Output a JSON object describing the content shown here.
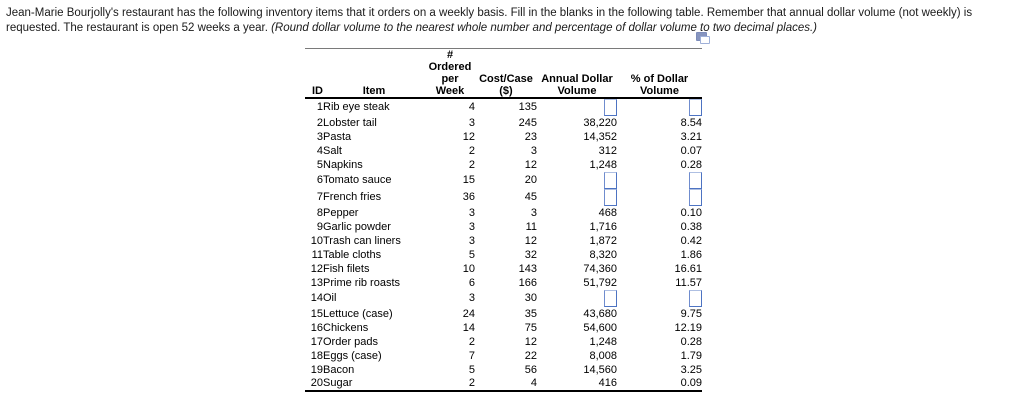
{
  "problem": {
    "text_normal": "Jean-Marie Bourjolly's restaurant has the following inventory items that it orders on a weekly basis. Fill in the blanks in the following table. Remember that annual dollar volume (not weekly) is requested. The restaurant is open 52 weeks a year. ",
    "text_italic": "(Round dollar volume to the nearest whole number and percentage of dollar volume to two decimal places.)"
  },
  "icons": {
    "copy": "copy-icon"
  },
  "colors": {
    "input_border_blue": "#4d73c2",
    "input_border_light": "#aebfe2",
    "rule_black": "#000000",
    "rule_gray": "#7a7a7a",
    "icon_fill": "#8795bf"
  },
  "table": {
    "headers": {
      "id": "ID",
      "item": "Item",
      "ordered1": "# Ordered per",
      "ordered2": "Week",
      "cost1": "Cost/Case",
      "cost2": "($)",
      "annual1": "Annual Dollar",
      "annual2": "Volume",
      "pct1": "% of Dollar",
      "pct2": "Volume"
    },
    "rows": [
      {
        "id": "1",
        "item": "Rib eye steak",
        "ordered": "4",
        "cost": "135",
        "annual": "",
        "pct": "",
        "blank": true
      },
      {
        "id": "2",
        "item": "Lobster tail",
        "ordered": "3",
        "cost": "245",
        "annual": "38,220",
        "pct": "8.54",
        "blank": false
      },
      {
        "id": "3",
        "item": "Pasta",
        "ordered": "12",
        "cost": "23",
        "annual": "14,352",
        "pct": "3.21",
        "blank": false
      },
      {
        "id": "4",
        "item": "Salt",
        "ordered": "2",
        "cost": "3",
        "annual": "312",
        "pct": "0.07",
        "blank": false
      },
      {
        "id": "5",
        "item": "Napkins",
        "ordered": "2",
        "cost": "12",
        "annual": "1,248",
        "pct": "0.28",
        "blank": false
      },
      {
        "id": "6",
        "item": "Tomato sauce",
        "ordered": "15",
        "cost": "20",
        "annual": "",
        "pct": "",
        "blank": true
      },
      {
        "id": "7",
        "item": "French fries",
        "ordered": "36",
        "cost": "45",
        "annual": "",
        "pct": "",
        "blank": true
      },
      {
        "id": "8",
        "item": "Pepper",
        "ordered": "3",
        "cost": "3",
        "annual": "468",
        "pct": "0.10",
        "blank": false
      },
      {
        "id": "9",
        "item": "Garlic powder",
        "ordered": "3",
        "cost": "11",
        "annual": "1,716",
        "pct": "0.38",
        "blank": false
      },
      {
        "id": "10",
        "item": "Trash can liners",
        "ordered": "3",
        "cost": "12",
        "annual": "1,872",
        "pct": "0.42",
        "blank": false
      },
      {
        "id": "11",
        "item": "Table cloths",
        "ordered": "5",
        "cost": "32",
        "annual": "8,320",
        "pct": "1.86",
        "blank": false
      },
      {
        "id": "12",
        "item": "Fish filets",
        "ordered": "10",
        "cost": "143",
        "annual": "74,360",
        "pct": "16.61",
        "blank": false
      },
      {
        "id": "13",
        "item": "Prime rib roasts",
        "ordered": "6",
        "cost": "166",
        "annual": "51,792",
        "pct": "11.57",
        "blank": false
      },
      {
        "id": "14",
        "item": "Oil",
        "ordered": "3",
        "cost": "30",
        "annual": "",
        "pct": "",
        "blank": true
      },
      {
        "id": "15",
        "item": "Lettuce (case)",
        "ordered": "24",
        "cost": "35",
        "annual": "43,680",
        "pct": "9.75",
        "blank": false
      },
      {
        "id": "16",
        "item": "Chickens",
        "ordered": "14",
        "cost": "75",
        "annual": "54,600",
        "pct": "12.19",
        "blank": false
      },
      {
        "id": "17",
        "item": "Order pads",
        "ordered": "2",
        "cost": "12",
        "annual": "1,248",
        "pct": "0.28",
        "blank": false
      },
      {
        "id": "18",
        "item": "Eggs (case)",
        "ordered": "7",
        "cost": "22",
        "annual": "8,008",
        "pct": "1.79",
        "blank": false
      },
      {
        "id": "19",
        "item": "Bacon",
        "ordered": "5",
        "cost": "56",
        "annual": "14,560",
        "pct": "3.25",
        "blank": false
      },
      {
        "id": "20",
        "item": "Sugar",
        "ordered": "2",
        "cost": "4",
        "annual": "416",
        "pct": "0.09",
        "blank": false
      }
    ]
  }
}
